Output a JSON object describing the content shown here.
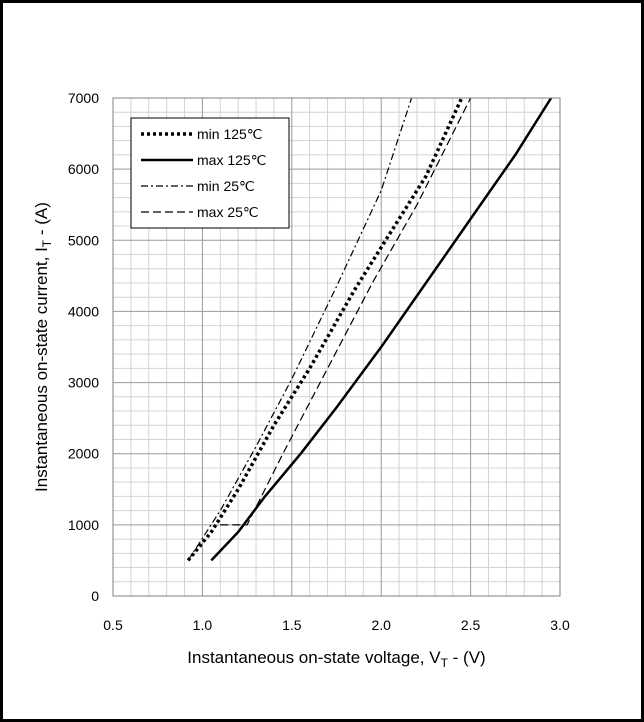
{
  "chart_data": {
    "type": "line",
    "title": "",
    "xlabel": "Instantaneous on-state voltage, V",
    "xlabel_sub": "T",
    "xlabel_unit": " -  (V)",
    "ylabel": "Instantaneous on-state current, I",
    "ylabel_sub": "T",
    "ylabel_unit": " -  (A)",
    "xlim": [
      0.5,
      3.0
    ],
    "ylim": [
      0,
      7000
    ],
    "x_major_ticks": [
      "0.5",
      "1.0",
      "1.5",
      "2.0",
      "2.5",
      "3.0"
    ],
    "y_major_ticks": [
      "0",
      "1000",
      "2000",
      "3000",
      "4000",
      "5000",
      "6000",
      "7000"
    ],
    "grid": true,
    "legend_position": "top-left",
    "series": [
      {
        "name": "min 125℃",
        "style": "dotted",
        "x": [
          0.92,
          1.05,
          1.2,
          1.4,
          1.6,
          1.85,
          2.05,
          2.25,
          2.45
        ],
        "y": [
          500,
          900,
          1500,
          2400,
          3200,
          4300,
          5100,
          5900,
          7000
        ]
      },
      {
        "name": "max 125℃",
        "style": "solid",
        "x": [
          1.05,
          1.2,
          1.35,
          1.55,
          1.75,
          2.0,
          2.25,
          2.5,
          2.75,
          2.95
        ],
        "y": [
          500,
          900,
          1400,
          2000,
          2650,
          3500,
          4400,
          5300,
          6200,
          7000
        ]
      },
      {
        "name": "min 25℃",
        "style": "dashdot",
        "x": [
          0.92,
          1.1,
          1.3,
          1.5,
          1.75,
          2.0,
          2.17
        ],
        "y": [
          500,
          1200,
          2100,
          3050,
          4350,
          5700,
          7000
        ]
      },
      {
        "name": "max 25℃",
        "style": "dashed",
        "x": [
          1.1,
          1.25,
          1.45,
          1.7,
          1.95,
          2.2,
          2.5
        ],
        "y": [
          1000,
          1000,
          2000,
          3200,
          4400,
          5500,
          7000
        ]
      }
    ]
  }
}
